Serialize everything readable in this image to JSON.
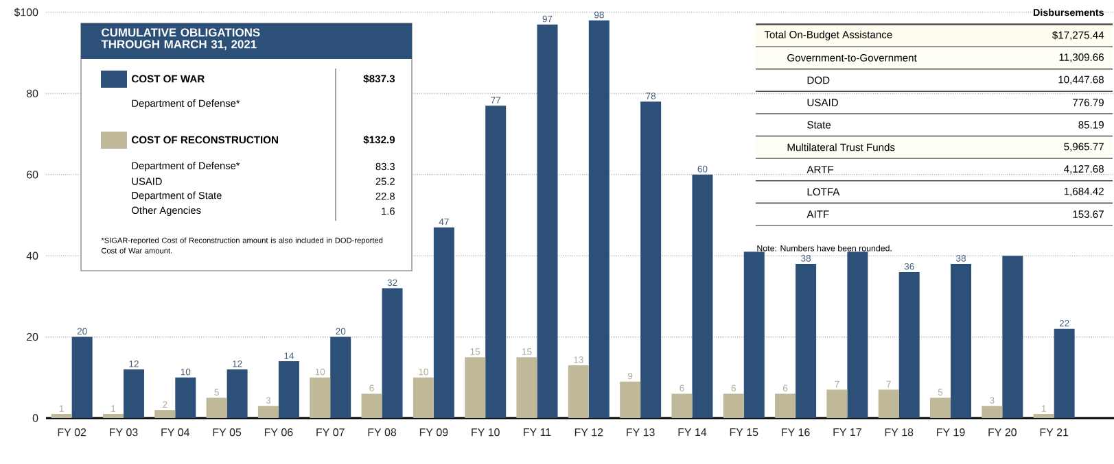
{
  "chart_data": [
    {
      "type": "bar",
      "legend_title": "CUMULATIVE OBLIGATIONS THROUGH MARCH 31, 2021",
      "categories": [
        "FY 02",
        "FY 03",
        "FY 04",
        "FY 05",
        "FY 06",
        "FY 07",
        "FY 08",
        "FY 09",
        "FY 10",
        "FY 11",
        "FY 12",
        "FY 13",
        "FY 14",
        "FY 15",
        "FY 16",
        "FY 17",
        "FY 18",
        "FY 19",
        "FY 20",
        "FY 21"
      ],
      "series": [
        {
          "name": "COST OF WAR",
          "color": "#2d5078",
          "values": [
            20,
            12,
            10,
            12,
            14,
            20,
            32,
            47,
            77,
            97,
            98,
            78,
            60,
            41,
            38,
            41,
            36,
            38,
            40,
            22
          ],
          "value_labels": [
            "20",
            "12",
            "10",
            "12",
            "14",
            "20",
            "32",
            "47",
            "77",
            "97",
            "98",
            "78",
            "60",
            null,
            "38",
            null,
            "36",
            "38",
            null,
            "22"
          ]
        },
        {
          "name": "COST OF RECONSTRUCTION",
          "color": "#bfb899",
          "values": [
            1,
            1,
            2,
            5,
            3,
            10,
            6,
            10,
            15,
            15,
            13,
            9,
            6,
            6,
            6,
            7,
            7,
            5,
            3,
            1
          ],
          "value_labels": [
            "1",
            "1",
            "2",
            "5",
            "3",
            "10",
            "6",
            "10",
            "15",
            "15",
            "13",
            "9",
            "6",
            "6",
            "6",
            "7",
            "7",
            "5",
            "3",
            "1"
          ]
        }
      ],
      "ylim": [
        0,
        100
      ],
      "yticks": [
        0,
        20,
        40,
        60,
        80,
        {
          "value": 100,
          "label": "$100"
        }
      ],
      "grid": "y",
      "legend": "top left",
      "annotations": [
        "$837.3",
        "Department of Defense*",
        "$132.9",
        "Department of Defense*",
        "83.3",
        "USAID",
        "25.2",
        "Department of State",
        "22.8",
        "Other Agencies",
        "1.6",
        "*SIGAR-reported Cost of Reconstruction amount is also included in DOD-reported Cost of War amount."
      ]
    },
    {
      "type": "other",
      "title": "Disbursements",
      "categories": [
        "Total On-Budget Assistance",
        "Government-to-Government",
        "DOD",
        "USAID",
        "State",
        "Multilateral Trust Funds",
        "ARTF",
        "LOTFA",
        "AITF"
      ],
      "value_labels": [
        "$17,275.44",
        "11,309.66",
        "10,447.68",
        "776.79",
        "85.19",
        "5,965.77",
        "4,127.68",
        "1,684.42",
        "153.67"
      ],
      "annotations": [
        "Note: Numbers have been rounded."
      ]
    }
  ]
}
